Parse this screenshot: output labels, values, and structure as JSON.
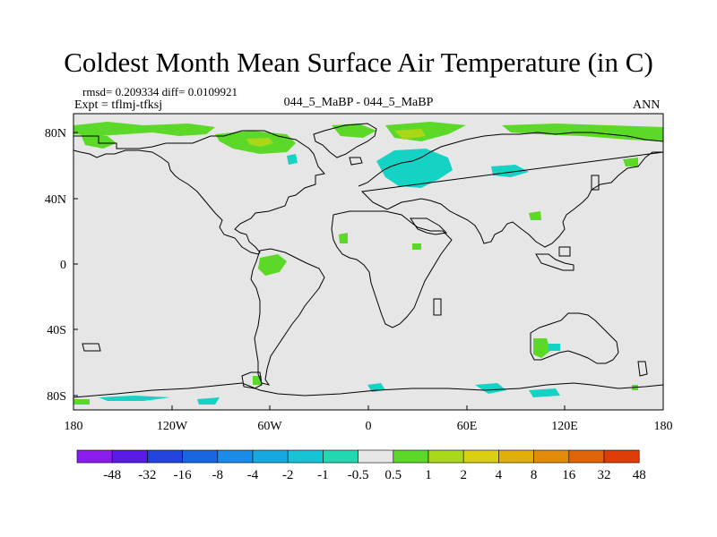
{
  "title": "Coldest Month Mean Surface Air Temperature (in C)",
  "stats_line": "rmsd= 0.209334 diff= 0.0109921",
  "expt_line": "Expt = tflmj-tfksj",
  "center_label": "044_5_MaBP - 044_5_MaBP",
  "season": "ANN",
  "lat_labels": [
    "80N",
    "40N",
    "0",
    "40S",
    "80S"
  ],
  "lon_labels": [
    "180",
    "120W",
    "60W",
    "0",
    "60E",
    "120E",
    "180"
  ],
  "colorbar": {
    "labels": [
      "-48",
      "-32",
      "-16",
      "-8",
      "-4",
      "-2",
      "-1",
      "-0.5",
      "0.5",
      "1",
      "2",
      "4",
      "8",
      "16",
      "32",
      "48"
    ],
    "colors": [
      "#8a1cf0",
      "#5a1ae8",
      "#2244dd",
      "#1a66e0",
      "#1a8ce8",
      "#18a8e0",
      "#14c4d4",
      "#22d8b0",
      "#e6e6e6",
      "#5cd828",
      "#a8d818",
      "#d8d010",
      "#e0b008",
      "#e08c08",
      "#e06408",
      "#e03c08"
    ]
  },
  "palette": {
    "background_field": "#e6e6e6",
    "cyan": "#14d2c4",
    "green": "#5cd828",
    "yellow_green": "#a8d818"
  }
}
